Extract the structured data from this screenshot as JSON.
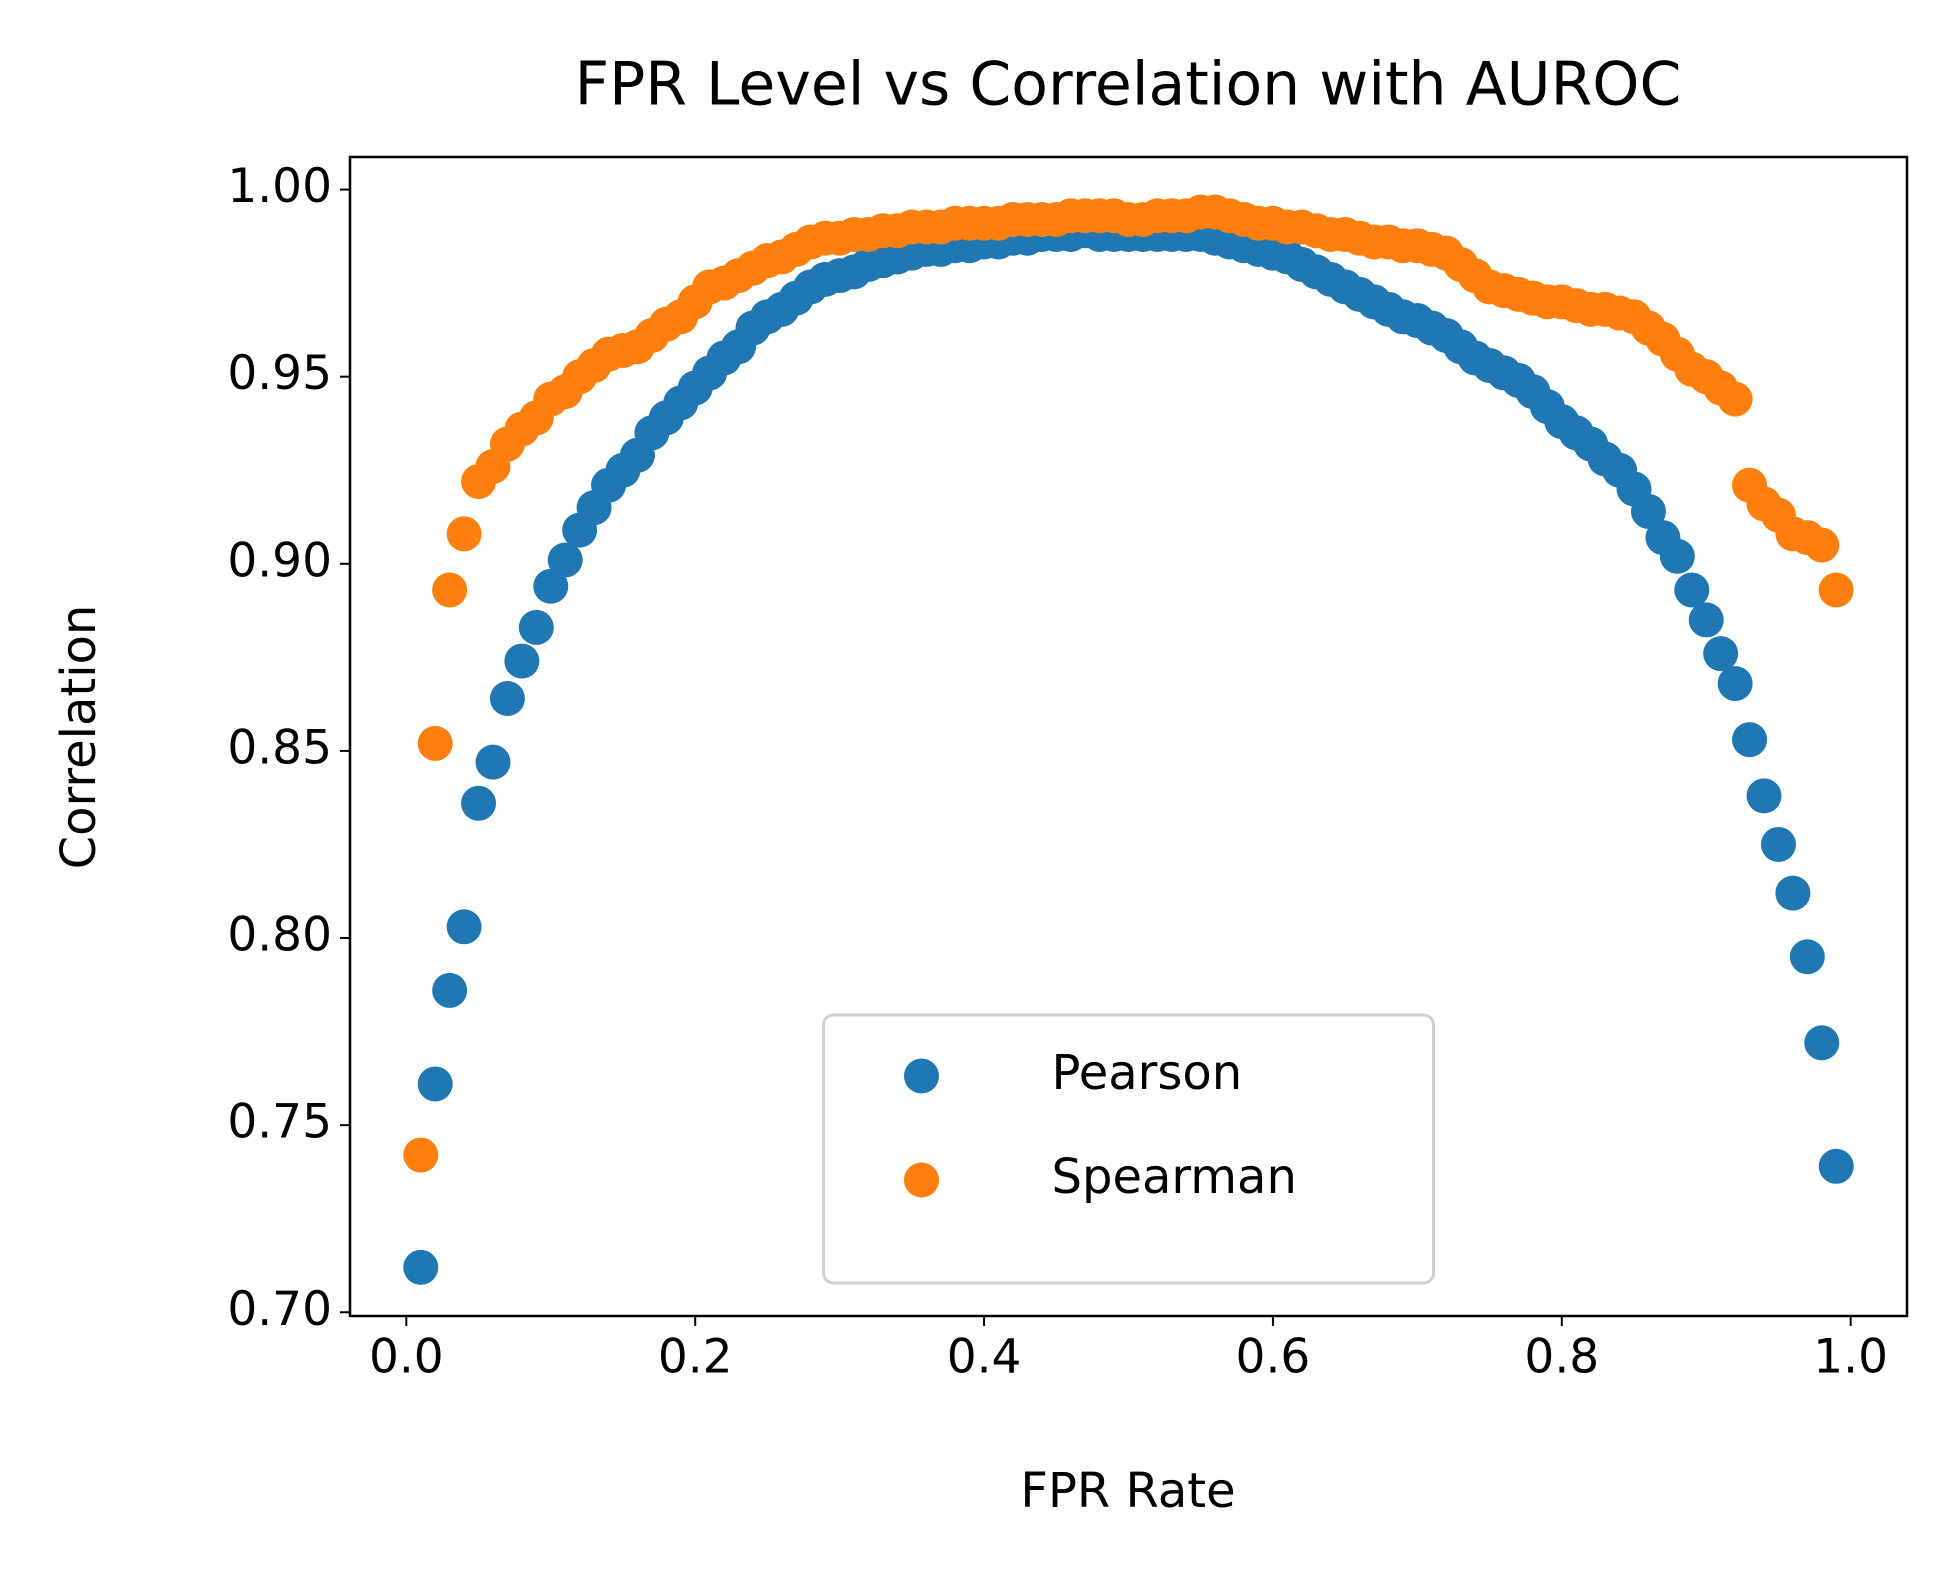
{
  "chart_data": {
    "type": "scatter",
    "title": "FPR Level vs Correlation with AUROC",
    "xlabel": "FPR Rate",
    "ylabel": "Correlation",
    "x": [
      0.01,
      0.02,
      0.03,
      0.04,
      0.05,
      0.06,
      0.07,
      0.08,
      0.09,
      0.1,
      0.11,
      0.12,
      0.13,
      0.14,
      0.15,
      0.16,
      0.17,
      0.18,
      0.19,
      0.2,
      0.21,
      0.22,
      0.23,
      0.24,
      0.25,
      0.26,
      0.27,
      0.28,
      0.29,
      0.3,
      0.31,
      0.32,
      0.33,
      0.34,
      0.35,
      0.36,
      0.37,
      0.38,
      0.39,
      0.4,
      0.41,
      0.42,
      0.43,
      0.44,
      0.45,
      0.46,
      0.47,
      0.48,
      0.49,
      0.5,
      0.51,
      0.52,
      0.53,
      0.54,
      0.55,
      0.56,
      0.57,
      0.58,
      0.59,
      0.6,
      0.61,
      0.62,
      0.63,
      0.64,
      0.65,
      0.66,
      0.67,
      0.68,
      0.69,
      0.7,
      0.71,
      0.72,
      0.73,
      0.74,
      0.75,
      0.76,
      0.77,
      0.78,
      0.79,
      0.8,
      0.81,
      0.82,
      0.83,
      0.84,
      0.85,
      0.86,
      0.87,
      0.88,
      0.89,
      0.9,
      0.91,
      0.92,
      0.93,
      0.94,
      0.95,
      0.96,
      0.97,
      0.98,
      0.99
    ],
    "series": [
      {
        "name": "Pearson",
        "color": "#1f77b4",
        "values": [
          0.712,
          0.761,
          0.786,
          0.803,
          0.836,
          0.847,
          0.864,
          0.874,
          0.883,
          0.894,
          0.901,
          0.909,
          0.915,
          0.921,
          0.925,
          0.929,
          0.935,
          0.939,
          0.943,
          0.947,
          0.951,
          0.955,
          0.958,
          0.963,
          0.966,
          0.968,
          0.971,
          0.974,
          0.976,
          0.977,
          0.978,
          0.98,
          0.981,
          0.982,
          0.983,
          0.984,
          0.984,
          0.985,
          0.985,
          0.986,
          0.986,
          0.987,
          0.987,
          0.988,
          0.988,
          0.988,
          0.989,
          0.988,
          0.988,
          0.988,
          0.988,
          0.988,
          0.988,
          0.988,
          0.988,
          0.987,
          0.986,
          0.985,
          0.984,
          0.983,
          0.982,
          0.98,
          0.978,
          0.976,
          0.974,
          0.972,
          0.97,
          0.968,
          0.966,
          0.965,
          0.963,
          0.961,
          0.958,
          0.955,
          0.953,
          0.951,
          0.949,
          0.946,
          0.942,
          0.938,
          0.935,
          0.932,
          0.928,
          0.925,
          0.92,
          0.914,
          0.907,
          0.902,
          0.893,
          0.885,
          0.876,
          0.868,
          0.853,
          0.838,
          0.825,
          0.812,
          0.795,
          0.772,
          0.739
        ]
      },
      {
        "name": "Spearman",
        "color": "#ff7f0e",
        "values": [
          0.742,
          0.852,
          0.893,
          0.908,
          0.922,
          0.926,
          0.932,
          0.936,
          0.939,
          0.944,
          0.946,
          0.95,
          0.953,
          0.956,
          0.957,
          0.958,
          0.961,
          0.964,
          0.966,
          0.97,
          0.974,
          0.975,
          0.977,
          0.979,
          0.981,
          0.982,
          0.984,
          0.986,
          0.987,
          0.987,
          0.988,
          0.988,
          0.989,
          0.989,
          0.99,
          0.99,
          0.99,
          0.991,
          0.991,
          0.991,
          0.991,
          0.992,
          0.992,
          0.992,
          0.992,
          0.993,
          0.993,
          0.993,
          0.993,
          0.992,
          0.992,
          0.993,
          0.993,
          0.993,
          0.994,
          0.994,
          0.993,
          0.992,
          0.991,
          0.991,
          0.99,
          0.99,
          0.989,
          0.988,
          0.988,
          0.987,
          0.986,
          0.986,
          0.985,
          0.985,
          0.984,
          0.983,
          0.98,
          0.977,
          0.974,
          0.973,
          0.972,
          0.971,
          0.97,
          0.97,
          0.969,
          0.968,
          0.968,
          0.967,
          0.966,
          0.963,
          0.96,
          0.956,
          0.952,
          0.95,
          0.947,
          0.944,
          0.921,
          0.916,
          0.913,
          0.908,
          0.907,
          0.905,
          0.893
        ]
      }
    ],
    "xlim": [
      -0.039,
      1.039
    ],
    "ylim": [
      0.699,
      1.0087
    ],
    "xticks": [
      {
        "value": 0,
        "label": "0.0"
      },
      0.2,
      0.4,
      0.6,
      0.8,
      {
        "value": 1,
        "label": "1.0"
      }
    ],
    "yticks": [
      {
        "value": 0.7,
        "label": "0.70"
      },
      0.75,
      {
        "value": 0.8,
        "label": "0.80"
      },
      0.85,
      {
        "value": 0.9,
        "label": "0.90"
      },
      0.95,
      {
        "value": 1,
        "label": "1.00"
      }
    ],
    "grid": false,
    "legend": "lower center"
  }
}
